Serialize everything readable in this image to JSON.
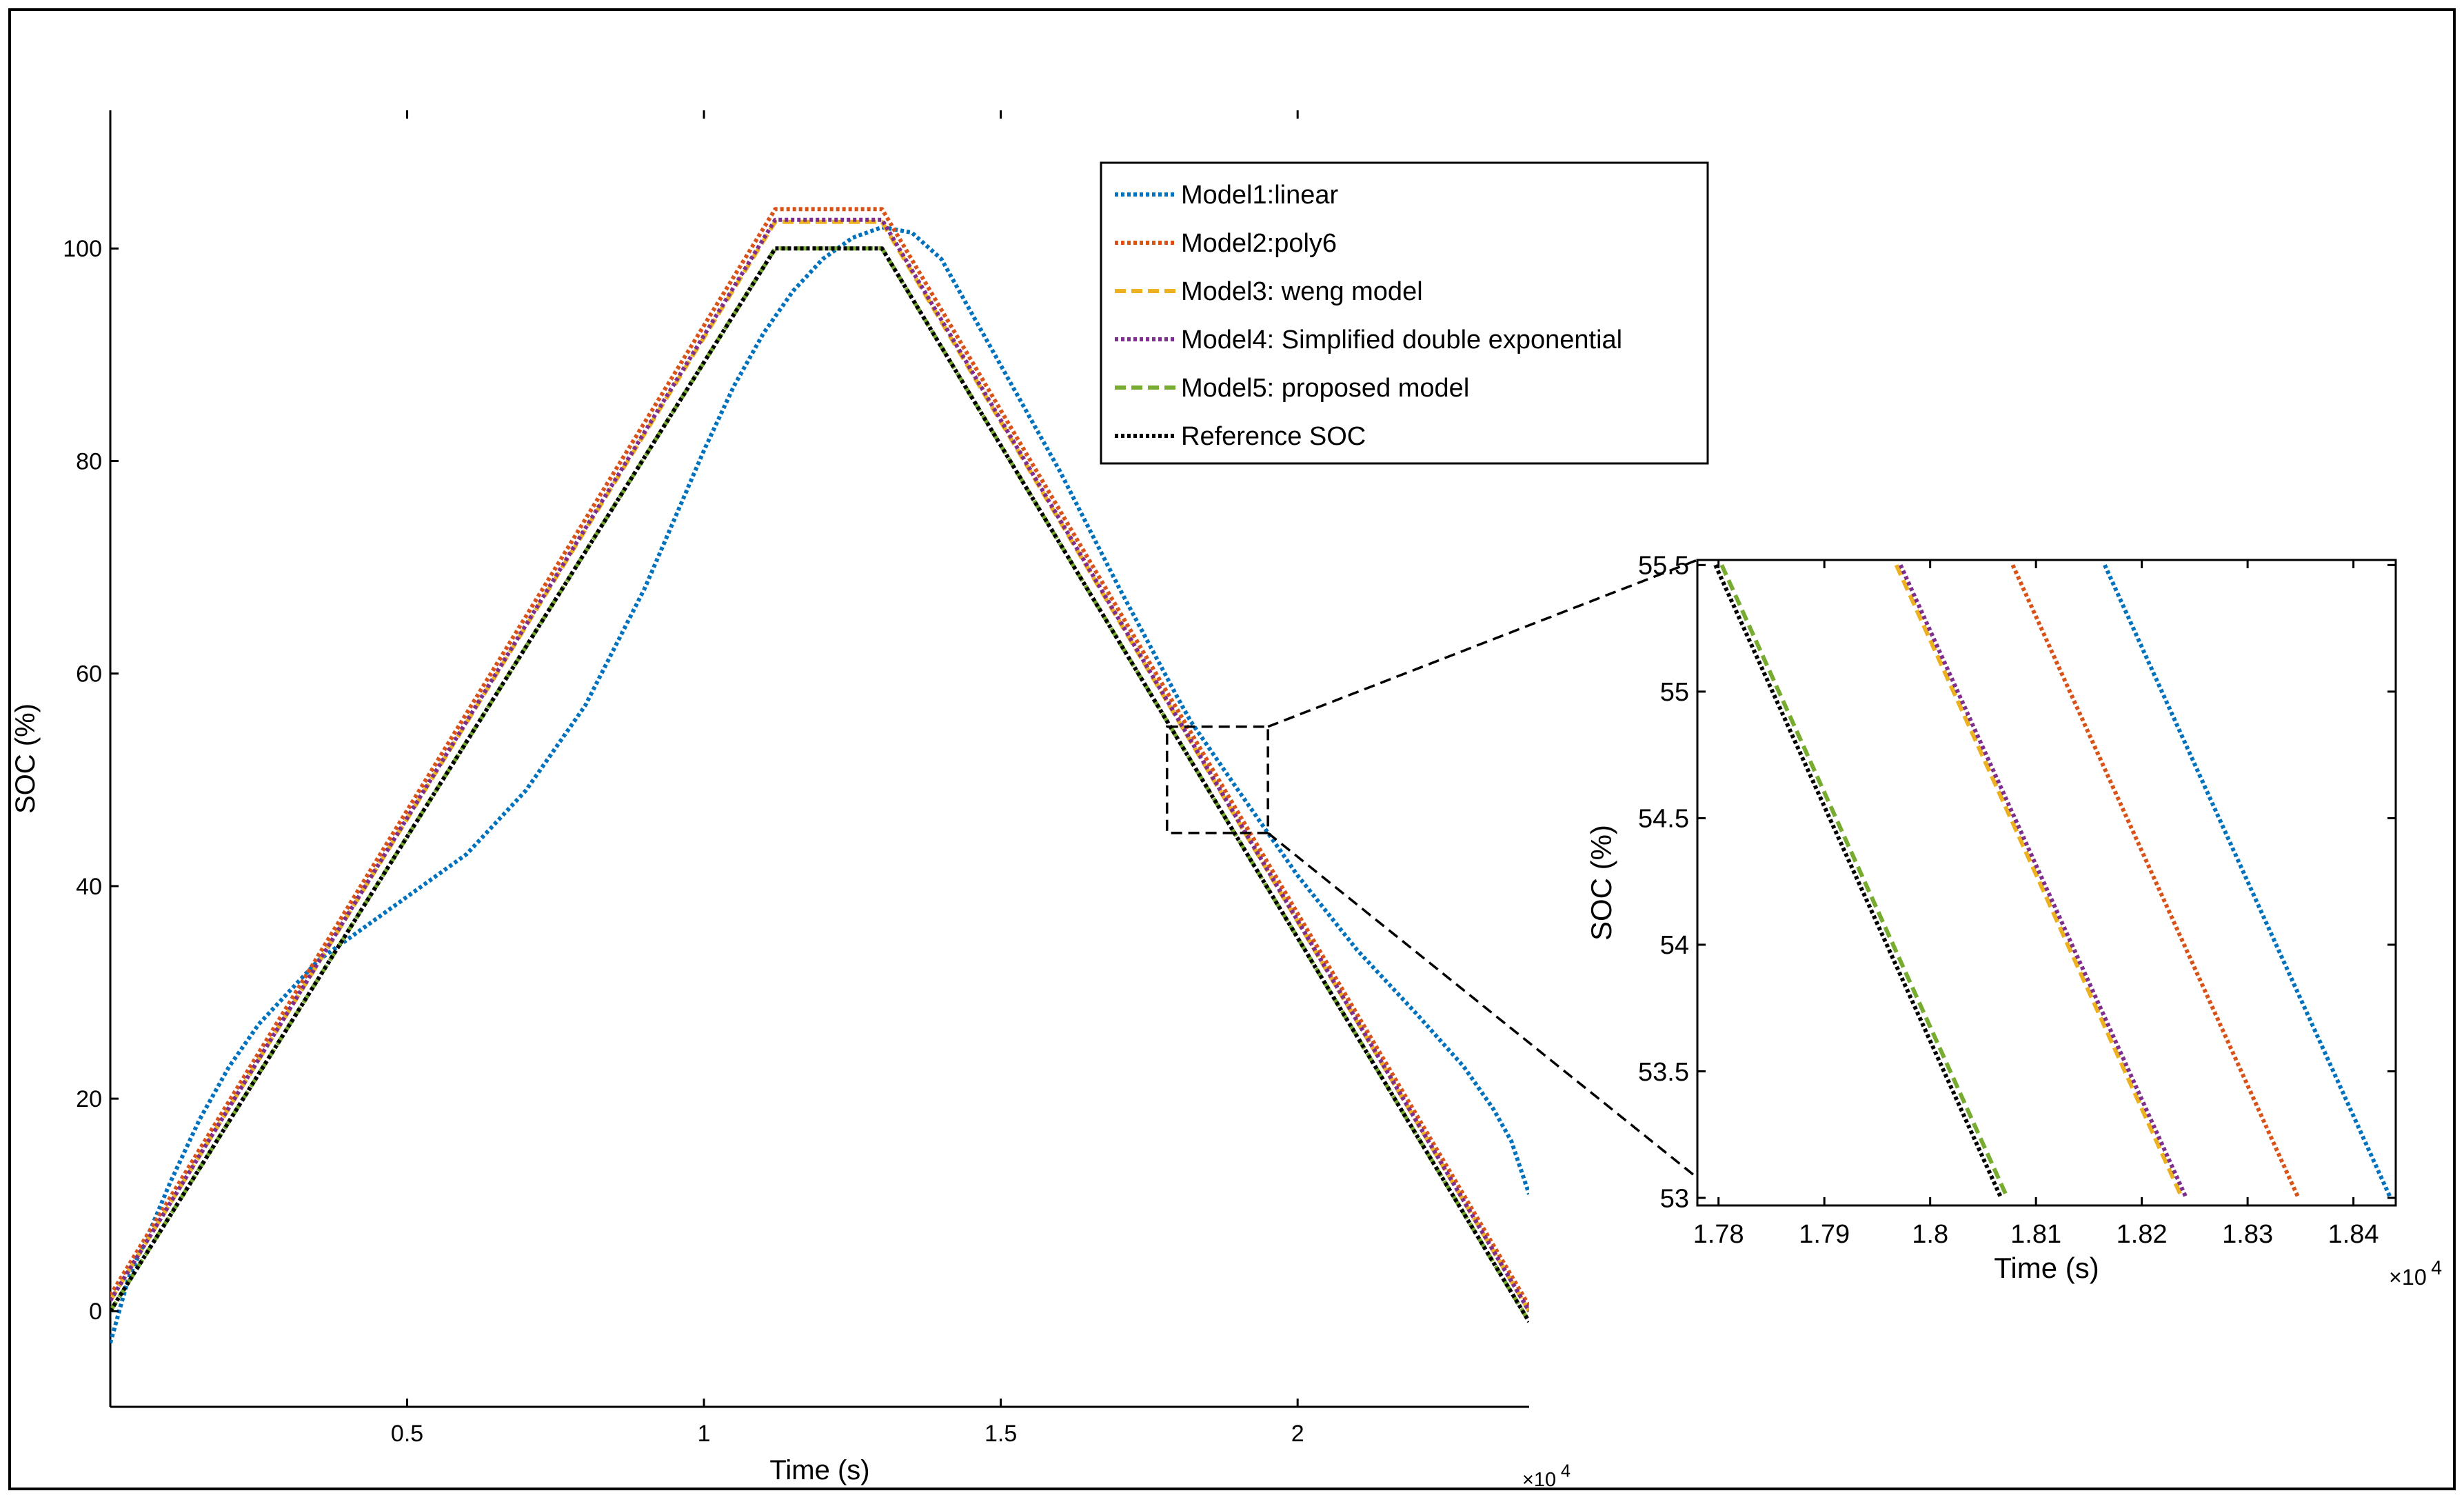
{
  "chart_data": [
    {
      "id": "main",
      "type": "line",
      "title": "",
      "xlabel": "Time (s)",
      "ylabel": "SOC (%)",
      "xlim": [
        0,
        23900
      ],
      "ylim": [
        -9,
        113
      ],
      "x_ticks": [
        5000,
        10000,
        15000,
        20000
      ],
      "x_tick_labels": [
        "0.5",
        "1",
        "1.5",
        "2"
      ],
      "x_exponent": "×10",
      "x_exponent_power": "4",
      "y_ticks": [
        0,
        20,
        40,
        60,
        80,
        100
      ],
      "y_tick_labels": [
        "0",
        "20",
        "40",
        "60",
        "80",
        "100"
      ],
      "grid": false,
      "legend_position": "top-right",
      "series": [
        {
          "name": "Model1:linear",
          "color": "#0072BD",
          "style": "dotted",
          "x": [
            0,
            300,
            700,
            1000,
            1500,
            2000,
            2500,
            3000,
            3500,
            4000,
            5000,
            6000,
            7000,
            8000,
            9000,
            10000,
            10500,
            11000,
            11500,
            12000,
            12500,
            13000,
            13500,
            14000,
            15000,
            16000,
            17000,
            18000,
            18200,
            19000,
            20000,
            21000,
            22000,
            22800,
            23300,
            23600,
            23900
          ],
          "y": [
            -3,
            3,
            8,
            12,
            18,
            23,
            27,
            30,
            33,
            35,
            39,
            43,
            49,
            57,
            68,
            81,
            87,
            92,
            96,
            99,
            101,
            102,
            101.5,
            99,
            89,
            79,
            68,
            57.5,
            55.5,
            49,
            41,
            34,
            28,
            23,
            19,
            16,
            11
          ]
        },
        {
          "name": "Model2:poly6",
          "color": "#D95319",
          "style": "dotted",
          "x": [
            0,
            11200,
            13000,
            23900
          ],
          "y": [
            1.5,
            103.7,
            103.7,
            0.5
          ]
        },
        {
          "name": "Model3: weng model",
          "color": "#EDB120",
          "style": "dashed",
          "x": [
            0,
            11200,
            13000,
            23900
          ],
          "y": [
            1,
            102.5,
            102.5,
            0
          ]
        },
        {
          "name": "Model4: Simplified double exponential",
          "color": "#7E2F8E",
          "style": "dotted",
          "x": [
            0,
            11200,
            13000,
            23900
          ],
          "y": [
            1,
            102.7,
            102.7,
            0
          ]
        },
        {
          "name": "Model5: proposed model",
          "color": "#77AC30",
          "style": "dashed",
          "x": [
            0,
            11200,
            13000,
            23900
          ],
          "y": [
            0,
            100,
            100,
            -1
          ]
        },
        {
          "name": "Reference SOC",
          "color": "#000000",
          "style": "dotted",
          "x": [
            0,
            11200,
            13000,
            23900
          ],
          "y": [
            0,
            100,
            100,
            -1
          ]
        }
      ],
      "zoom_box": {
        "x": [
          17800,
          19500
        ],
        "y": [
          45,
          55
        ]
      }
    },
    {
      "id": "inset",
      "type": "line",
      "title": "",
      "xlabel": "Time (s)",
      "ylabel": "SOC (%)",
      "xlim": [
        17780,
        18440
      ],
      "ylim": [
        52.97,
        55.52
      ],
      "x_ticks": [
        17800,
        17900,
        18000,
        18100,
        18200,
        18300,
        18400
      ],
      "x_tick_labels": [
        "1.78",
        "1.79",
        "1.8",
        "1.81",
        "1.82",
        "1.83",
        "1.84"
      ],
      "x_exponent": "×10",
      "x_exponent_power": "4",
      "y_ticks": [
        53,
        53.5,
        54,
        54.5,
        55,
        55.5
      ],
      "y_tick_labels": [
        "53",
        "53.5",
        "54",
        "54.5",
        "55",
        "55.5"
      ],
      "grid": false,
      "series": [
        {
          "name": "Model1:linear",
          "color": "#0072BD",
          "style": "dotted",
          "x": [
            18165,
            18435
          ],
          "y": [
            55.5,
            53
          ]
        },
        {
          "name": "Model2:poly6",
          "color": "#D95319",
          "style": "dotted",
          "x": [
            18078,
            18348
          ],
          "y": [
            55.5,
            53
          ]
        },
        {
          "name": "Model3: weng model",
          "color": "#EDB120",
          "style": "dashed",
          "x": [
            17968,
            18238
          ],
          "y": [
            55.5,
            53
          ]
        },
        {
          "name": "Model4: Simplified double exponential",
          "color": "#7E2F8E",
          "style": "dotted",
          "x": [
            17972,
            18242
          ],
          "y": [
            55.5,
            53
          ]
        },
        {
          "name": "Model5: proposed model",
          "color": "#77AC30",
          "style": "dashed",
          "x": [
            17803,
            18073
          ],
          "y": [
            55.5,
            53
          ]
        },
        {
          "name": "Reference SOC",
          "color": "#000000",
          "style": "dotted",
          "x": [
            17797,
            18067
          ],
          "y": [
            55.5,
            53
          ]
        }
      ]
    }
  ]
}
